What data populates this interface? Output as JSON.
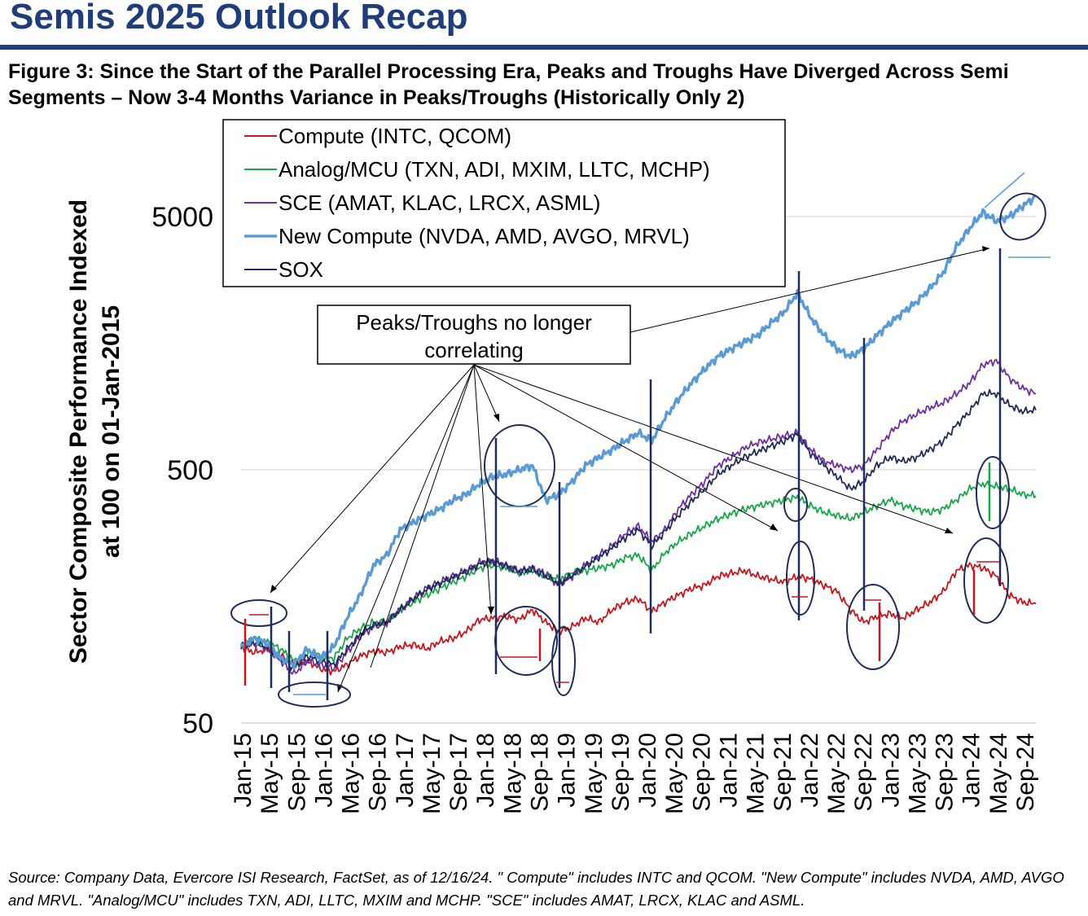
{
  "header": {
    "title": "Semis 2025 Outlook Recap",
    "figure_title": "Figure 3: Since the Start of the Parallel Processing Era, Peaks and Troughs Have Diverged Across Semi Segments – Now 3-4 Months Variance in Peaks/Troughs (Historically Only 2)"
  },
  "annotation": {
    "line1": "Peaks/Troughs no longer",
    "line2": "correlating"
  },
  "source": "Source: Company Data, Evercore ISI Research, FactSet, as of 12/16/24. \" Compute\" includes INTC and QCOM. \"New Compute\" includes NVDA, AMD, AVGO and MRVL. \"Analog/MCU\" includes TXN, ADI, LLTC, MXIM and MCHP. \"SCE\" includes AMAT, LRCX, KLAC and ASML.",
  "colors": {
    "compute": "#c8161d",
    "analog": "#19a64a",
    "sce": "#7030a0",
    "new_compute": "#5b9bd5",
    "sox": "#1f2d5a",
    "title": "#1f3d7a"
  },
  "chart_data": {
    "type": "line",
    "title": "",
    "xlabel": "",
    "ylabel": "Sector Composite Performance Indexed at 100 on 01-Jan-2015",
    "ylabel_line1": "Sector Composite Performance Indexed",
    "ylabel_line2": "at 100 on 01-Jan-2015",
    "y_scale": "log",
    "ylim": [
      50,
      12000
    ],
    "yticks": [
      50,
      500,
      5000
    ],
    "ytick_labels": [
      "50",
      "500",
      "5000"
    ],
    "grid": true,
    "legend_position": "top-left",
    "x_tick_labels": [
      "Jan-15",
      "May-15",
      "Sep-15",
      "Jan-16",
      "May-16",
      "Sep-16",
      "Jan-17",
      "May-17",
      "Sep-17",
      "Jan-18",
      "May-18",
      "Sep-18",
      "Jan-19",
      "May-19",
      "Sep-19",
      "Jan-20",
      "May-20",
      "Sep-20",
      "Jan-21",
      "May-21",
      "Sep-21",
      "Jan-22",
      "May-22",
      "Sep-22",
      "Jan-23",
      "May-23",
      "Sep-23",
      "Jan-24",
      "May-24",
      "Sep-24"
    ],
    "x": [
      "Jan-15",
      "Mar-15",
      "May-15",
      "Jul-15",
      "Sep-15",
      "Nov-15",
      "Jan-16",
      "Mar-16",
      "May-16",
      "Jul-16",
      "Sep-16",
      "Nov-16",
      "Jan-17",
      "Mar-17",
      "May-17",
      "Jul-17",
      "Sep-17",
      "Nov-17",
      "Jan-18",
      "Mar-18",
      "May-18",
      "Jul-18",
      "Sep-18",
      "Nov-18",
      "Jan-19",
      "Mar-19",
      "May-19",
      "Jul-19",
      "Sep-19",
      "Nov-19",
      "Jan-20",
      "Mar-20",
      "May-20",
      "Jul-20",
      "Sep-20",
      "Nov-20",
      "Jan-21",
      "Mar-21",
      "May-21",
      "Jul-21",
      "Sep-21",
      "Nov-21",
      "Jan-22",
      "Mar-22",
      "May-22",
      "Jul-22",
      "Sep-22",
      "Nov-22",
      "Jan-23",
      "Mar-23",
      "May-23",
      "Jul-23",
      "Sep-23",
      "Nov-23",
      "Jan-24",
      "Mar-24",
      "May-24",
      "Jul-24",
      "Sep-24",
      "Nov-24",
      "Dec-24"
    ],
    "series": [
      {
        "name": "Compute (INTC, QCOM)",
        "key": "compute",
        "values": [
          100,
          95,
          98,
          92,
          85,
          88,
          82,
          80,
          85,
          92,
          96,
          95,
          100,
          102,
          98,
          105,
          108,
          115,
          128,
          130,
          132,
          128,
          140,
          125,
          115,
          120,
          130,
          125,
          140,
          150,
          155,
          138,
          150,
          160,
          170,
          175,
          190,
          195,
          200,
          190,
          185,
          180,
          190,
          185,
          175,
          165,
          140,
          125,
          132,
          135,
          130,
          140,
          150,
          165,
          200,
          210,
          205,
          190,
          160,
          150,
          148
        ]
      },
      {
        "name": "Analog/MCU (TXN, ADI, MXIM, LLTC, MCHP)",
        "key": "analog",
        "values": [
          100,
          108,
          104,
          98,
          88,
          95,
          92,
          90,
          108,
          118,
          125,
          125,
          140,
          150,
          160,
          170,
          180,
          190,
          205,
          210,
          205,
          195,
          200,
          190,
          185,
          195,
          200,
          205,
          210,
          225,
          230,
          200,
          235,
          260,
          280,
          300,
          320,
          335,
          350,
          360,
          370,
          380,
          390,
          360,
          340,
          330,
          320,
          340,
          360,
          380,
          360,
          350,
          340,
          350,
          380,
          420,
          440,
          430,
          420,
          400,
          395
        ]
      },
      {
        "name": "SCE (AMAT, KLAC, LRCX, ASML)",
        "key": "sce",
        "values": [
          100,
          103,
          98,
          88,
          78,
          88,
          85,
          82,
          95,
          110,
          120,
          125,
          140,
          155,
          170,
          180,
          190,
          200,
          215,
          220,
          210,
          200,
          205,
          195,
          175,
          190,
          210,
          230,
          250,
          280,
          300,
          260,
          290,
          350,
          400,
          450,
          520,
          560,
          610,
          640,
          660,
          680,
          700,
          600,
          540,
          520,
          500,
          520,
          600,
          700,
          780,
          830,
          880,
          920,
          1000,
          1100,
          1300,
          1350,
          1150,
          1050,
          1000
        ]
      },
      {
        "name": "New Compute (NVDA, AMD, AVGO, MRVL)",
        "key": "new_compute",
        "values": [
          100,
          108,
          103,
          90,
          85,
          98,
          90,
          100,
          130,
          160,
          210,
          230,
          290,
          310,
          330,
          350,
          380,
          400,
          440,
          470,
          480,
          500,
          520,
          380,
          400,
          450,
          520,
          560,
          600,
          650,
          700,
          650,
          800,
          950,
          1100,
          1250,
          1400,
          1500,
          1600,
          1700,
          1900,
          2100,
          2500,
          2000,
          1700,
          1500,
          1400,
          1500,
          1700,
          1900,
          2100,
          2300,
          2600,
          3000,
          3800,
          4500,
          5200,
          4800,
          5000,
          5500,
          6000
        ]
      },
      {
        "name": "SOX",
        "key": "sox",
        "values": [
          100,
          104,
          100,
          90,
          82,
          92,
          88,
          85,
          98,
          112,
          122,
          125,
          140,
          155,
          168,
          178,
          188,
          198,
          212,
          218,
          208,
          198,
          202,
          190,
          178,
          192,
          208,
          225,
          245,
          270,
          290,
          250,
          285,
          330,
          375,
          420,
          480,
          520,
          560,
          590,
          620,
          650,
          690,
          580,
          520,
          470,
          420,
          450,
          520,
          560,
          540,
          560,
          600,
          650,
          750,
          850,
          1000,
          1000,
          900,
          850,
          860
        ]
      }
    ]
  }
}
